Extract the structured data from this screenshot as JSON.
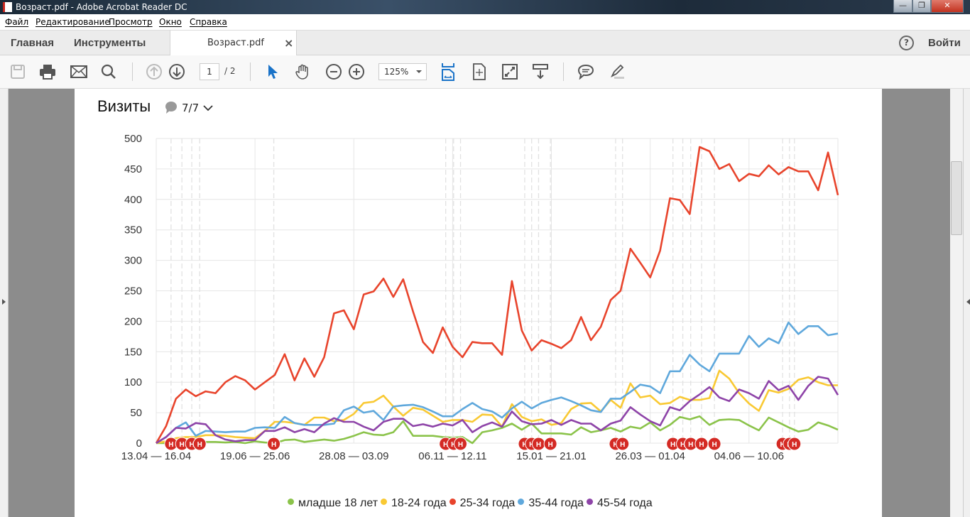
{
  "window": {
    "title": "Возраст.pdf - Adobe Acrobat Reader DC",
    "minimize": "—",
    "restore": "❐",
    "close": "✕"
  },
  "menu": [
    "Файл",
    "Редактирование",
    "Просмотр",
    "Окно",
    "Справка"
  ],
  "tabs": {
    "home": "Главная",
    "tools": "Инструменты",
    "document": "Возраст.pdf",
    "close": "×",
    "help": "?",
    "signin": "Войти"
  },
  "toolbar": {
    "page_current": "1",
    "page_total": "/ 2",
    "zoom": "125%"
  },
  "widget": {
    "title": "Визиты",
    "comments": "7/7"
  },
  "colors": {
    "under18": "#8bc34a",
    "18_24": "#f9c933",
    "25_34": "#e8442c",
    "35_44": "#5fa8dc",
    "45_54": "#8e44a8",
    "annotation": "#d42a24"
  },
  "chart_data": {
    "type": "line",
    "title": "Визиты",
    "xlabel": "",
    "ylabel": "",
    "ylim": [
      0,
      500
    ],
    "yticks": [
      0,
      50,
      100,
      150,
      200,
      250,
      300,
      350,
      400,
      450,
      500
    ],
    "xtick_labels": [
      "13.04 — 16.04",
      "19.06 — 25.06",
      "28.08 — 03.09",
      "06.11 — 12.11",
      "15.01 — 21.01",
      "26.03 — 01.04",
      "04.06 — 10.06"
    ],
    "xtick_index": [
      0,
      10,
      20,
      30,
      40,
      50,
      60
    ],
    "grid": true,
    "legend": "bottom",
    "annotation_label": "Н",
    "annotation_index": [
      1.5,
      2.6,
      3.6,
      4.4,
      11.9,
      29.3,
      30.1,
      30.8,
      37.3,
      38,
      38.7,
      39.9,
      46.5,
      47.2,
      52.3,
      53.3,
      54.1,
      55.2,
      56.5,
      63.4,
      64.1,
      64.6
    ],
    "series": [
      {
        "name": "младше 18 лет",
        "color": "#8bc34a",
        "values": [
          0,
          0,
          0,
          1,
          1,
          2,
          2,
          1,
          2,
          0,
          3,
          1,
          0,
          5,
          6,
          2,
          4,
          6,
          4,
          7,
          12,
          18,
          14,
          13,
          18,
          36,
          12,
          12,
          12,
          10,
          9,
          10,
          0,
          18,
          21,
          25,
          32,
          22,
          32,
          16,
          16,
          16,
          14,
          26,
          18,
          21,
          25,
          19,
          27,
          24,
          34,
          21,
          30,
          43,
          39,
          44,
          30,
          38,
          39,
          38,
          29,
          21,
          42,
          34,
          26,
          19,
          22,
          34,
          29,
          22
        ]
      },
      {
        "name": "18-24 года",
        "color": "#f9c933",
        "values": [
          0,
          3,
          8,
          10,
          10,
          13,
          13,
          12,
          10,
          9,
          8,
          20,
          35,
          35,
          33,
          30,
          42,
          42,
          36,
          38,
          48,
          66,
          68,
          78,
          60,
          45,
          58,
          55,
          45,
          35,
          38,
          38,
          35,
          47,
          46,
          27,
          64,
          43,
          36,
          39,
          30,
          33,
          56,
          65,
          66,
          52,
          71,
          58,
          98,
          75,
          78,
          64,
          66,
          76,
          71,
          71,
          74,
          119,
          106,
          82,
          65,
          53,
          87,
          83,
          89,
          104,
          108,
          100,
          95,
          95
        ]
      },
      {
        "name": "25-34 года",
        "color": "#e8442c",
        "values": [
          0,
          28,
          73,
          88,
          77,
          85,
          82,
          100,
          110,
          103,
          88,
          100,
          112,
          146,
          103,
          139,
          109,
          141,
          213,
          218,
          187,
          244,
          249,
          270,
          240,
          269,
          216,
          166,
          148,
          190,
          158,
          141,
          166,
          164,
          164,
          145,
          266,
          185,
          152,
          169,
          163,
          156,
          169,
          207,
          169,
          191,
          235,
          250,
          319,
          296,
          272,
          316,
          402,
          399,
          376,
          486,
          479,
          450,
          458,
          430,
          442,
          438,
          456,
          441,
          453,
          446,
          446,
          415,
          477,
          407
        ]
      },
      {
        "name": "35-44 года",
        "color": "#5fa8dc",
        "values": [
          0,
          10,
          25,
          34,
          12,
          20,
          19,
          18,
          19,
          19,
          25,
          26,
          25,
          43,
          33,
          30,
          30,
          30,
          32,
          54,
          60,
          50,
          53,
          38,
          60,
          62,
          63,
          59,
          52,
          44,
          44,
          56,
          66,
          56,
          52,
          42,
          57,
          68,
          57,
          66,
          71,
          75,
          69,
          62,
          54,
          51,
          73,
          73,
          84,
          96,
          93,
          82,
          118,
          118,
          145,
          129,
          118,
          147,
          147,
          147,
          176,
          158,
          172,
          164,
          198,
          179,
          192,
          192,
          177,
          180
        ]
      },
      {
        "name": "45-54 года",
        "color": "#8e44a8",
        "values": [
          0,
          10,
          25,
          24,
          33,
          31,
          13,
          6,
          3,
          5,
          5,
          20,
          20,
          26,
          18,
          23,
          18,
          32,
          41,
          35,
          35,
          27,
          21,
          35,
          40,
          40,
          28,
          31,
          27,
          32,
          29,
          38,
          18,
          28,
          34,
          27,
          52,
          36,
          31,
          32,
          38,
          30,
          38,
          32,
          32,
          21,
          32,
          37,
          59,
          47,
          36,
          29,
          59,
          54,
          69,
          80,
          92,
          75,
          69,
          88,
          82,
          73,
          102,
          87,
          94,
          71,
          94,
          109,
          106,
          79
        ]
      }
    ]
  }
}
